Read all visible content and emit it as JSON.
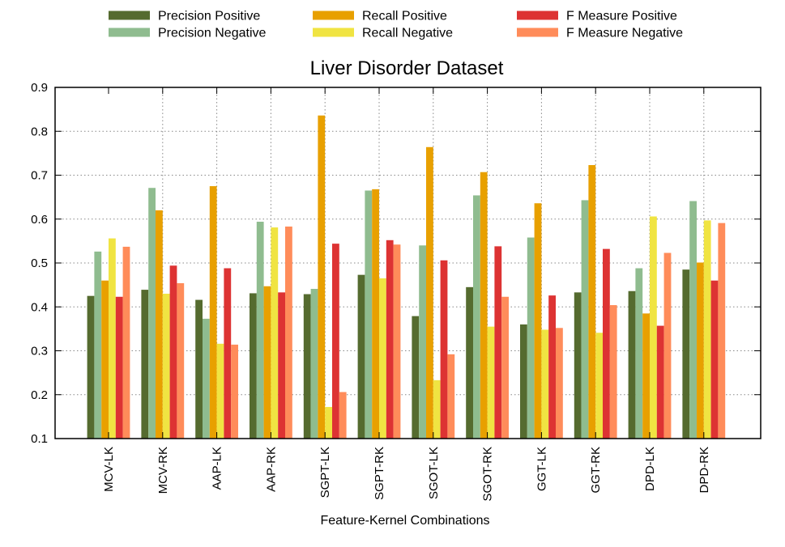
{
  "chart_data": {
    "type": "bar",
    "title": "Liver Disorder Dataset",
    "xlabel": "Feature-Kernel Combinations",
    "ylabel": "",
    "ylim": [
      0.1,
      0.9
    ],
    "yticks": [
      "0.1",
      "0.2",
      "0.3",
      "0.4",
      "0.5",
      "0.6",
      "0.7",
      "0.8",
      "0.9"
    ],
    "grid": "dotted",
    "legend_position": "top",
    "categories": [
      "MCV-LK",
      "MCV-RK",
      "AAP-LK",
      "AAP-RK",
      "SGPT-LK",
      "SGPT-RK",
      "SGOT-LK",
      "SGOT-RK",
      "GGT-LK",
      "GGT-RK",
      "DPD-LK",
      "DPD-RK"
    ],
    "series": [
      {
        "name": "Precision Positive",
        "color": "#556b2f",
        "values": [
          0.425,
          0.439,
          0.416,
          0.431,
          0.429,
          0.473,
          0.379,
          0.445,
          0.36,
          0.433,
          0.436,
          0.485
        ]
      },
      {
        "name": "Precision Negative",
        "color": "#8fbc8f",
        "values": [
          0.526,
          0.671,
          0.373,
          0.594,
          0.441,
          0.665,
          0.54,
          0.654,
          0.558,
          0.643,
          0.488,
          0.641
        ]
      },
      {
        "name": "Recall Positive",
        "color": "#e8a000",
        "values": [
          0.46,
          0.62,
          0.675,
          0.447,
          0.836,
          0.668,
          0.764,
          0.707,
          0.636,
          0.723,
          0.385,
          0.501
        ]
      },
      {
        "name": "Recall Negative",
        "color": "#f0e442",
        "values": [
          0.556,
          0.43,
          0.316,
          0.581,
          0.172,
          0.465,
          0.233,
          0.355,
          0.348,
          0.341,
          0.606,
          0.597
        ]
      },
      {
        "name": "F Measure Positive",
        "color": "#dd3333",
        "values": [
          0.423,
          0.494,
          0.488,
          0.433,
          0.544,
          0.552,
          0.506,
          0.538,
          0.426,
          0.532,
          0.357,
          0.46
        ]
      },
      {
        "name": "F Measure Negative",
        "color": "#ff8c5a",
        "values": [
          0.537,
          0.454,
          0.314,
          0.583,
          0.206,
          0.542,
          0.292,
          0.423,
          0.352,
          0.404,
          0.523,
          0.591
        ]
      }
    ]
  }
}
